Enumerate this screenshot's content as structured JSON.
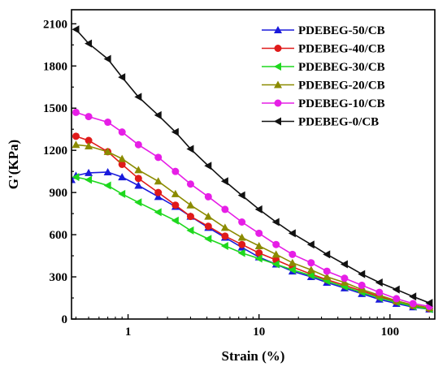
{
  "chart_data": {
    "type": "line",
    "title": "",
    "xlabel": "Strain (%)",
    "ylabel": "G'(KPa)",
    "x_scale": "log",
    "xlim": [
      0.37,
      220
    ],
    "ylim": [
      0,
      2200
    ],
    "x_ticks": [
      1,
      10,
      100
    ],
    "x_tick_labels": [
      "1",
      "10",
      "100"
    ],
    "y_ticks": [
      0,
      300,
      600,
      900,
      1200,
      1500,
      1800,
      2100
    ],
    "y_tick_labels": [
      "0",
      "300",
      "600",
      "900",
      "1200",
      "1500",
      "1800",
      "2100"
    ],
    "grid": false,
    "legend_position": "top-right",
    "series": [
      {
        "name": "PDEBEG-50/CB",
        "color": "#1a1adc",
        "marker": "triangle-up",
        "x": [
          0.37,
          0.4,
          0.5,
          0.7,
          0.9,
          1.2,
          1.7,
          2.3,
          3.0,
          4.1,
          5.5,
          7.4,
          10,
          13.5,
          18,
          25,
          33,
          45,
          61,
          83,
          112,
          150,
          200
        ],
        "y": [
          990,
          1020,
          1040,
          1045,
          1010,
          950,
          870,
          800,
          730,
          650,
          580,
          510,
          440,
          390,
          340,
          300,
          260,
          220,
          180,
          140,
          110,
          85,
          70
        ]
      },
      {
        "name": "PDEBEG-40/CB",
        "color": "#e01a1a",
        "marker": "circle",
        "x": [
          0.4,
          0.5,
          0.7,
          0.9,
          1.2,
          1.7,
          2.3,
          3.0,
          4.1,
          5.5,
          7.4,
          10,
          13.5,
          18,
          25,
          33,
          45,
          61,
          83,
          112,
          150,
          200
        ],
        "y": [
          1300,
          1270,
          1190,
          1100,
          1000,
          900,
          810,
          730,
          660,
          590,
          530,
          470,
          420,
          370,
          320,
          280,
          240,
          200,
          160,
          125,
          95,
          75
        ]
      },
      {
        "name": "PDEBEG-30/CB",
        "color": "#1ed81e",
        "marker": "triangle-left",
        "x": [
          0.4,
          0.5,
          0.7,
          0.9,
          1.2,
          1.7,
          2.3,
          3.0,
          4.1,
          5.5,
          7.4,
          10,
          13.5,
          18,
          25,
          33,
          45,
          61,
          83,
          112,
          150,
          200
        ],
        "y": [
          1010,
          990,
          950,
          890,
          830,
          760,
          700,
          630,
          570,
          520,
          470,
          430,
          390,
          350,
          310,
          270,
          230,
          190,
          150,
          120,
          90,
          70
        ]
      },
      {
        "name": "PDEBEG-20/CB",
        "color": "#8b8b00",
        "marker": "triangle-up",
        "x": [
          0.4,
          0.5,
          0.7,
          0.9,
          1.2,
          1.7,
          2.3,
          3.0,
          4.1,
          5.5,
          7.4,
          10,
          13.5,
          18,
          25,
          33,
          45,
          61,
          83,
          112,
          150,
          200
        ],
        "y": [
          1240,
          1230,
          1190,
          1140,
          1060,
          980,
          890,
          810,
          730,
          650,
          580,
          520,
          460,
          400,
          350,
          300,
          260,
          210,
          170,
          130,
          100,
          80
        ]
      },
      {
        "name": "PDEBEG-10/CB",
        "color": "#e61ee6",
        "marker": "circle",
        "x": [
          0.4,
          0.5,
          0.7,
          0.9,
          1.2,
          1.7,
          2.3,
          3.0,
          4.1,
          5.5,
          7.4,
          10,
          13.5,
          18,
          25,
          33,
          45,
          61,
          83,
          112,
          150,
          200
        ],
        "y": [
          1470,
          1440,
          1400,
          1330,
          1240,
          1150,
          1050,
          960,
          870,
          780,
          690,
          610,
          530,
          460,
          400,
          340,
          290,
          240,
          190,
          145,
          110,
          90
        ]
      },
      {
        "name": "PDEBEG-0/CB",
        "color": "#111111",
        "marker": "triangle-left",
        "x": [
          0.4,
          0.5,
          0.7,
          0.9,
          1.2,
          1.7,
          2.3,
          3.0,
          4.1,
          5.5,
          7.4,
          10,
          13.5,
          18,
          25,
          33,
          45,
          61,
          83,
          112,
          150,
          200
        ],
        "y": [
          2060,
          1960,
          1850,
          1720,
          1580,
          1450,
          1330,
          1210,
          1090,
          980,
          880,
          780,
          690,
          610,
          530,
          460,
          390,
          320,
          260,
          210,
          160,
          115
        ]
      }
    ]
  }
}
